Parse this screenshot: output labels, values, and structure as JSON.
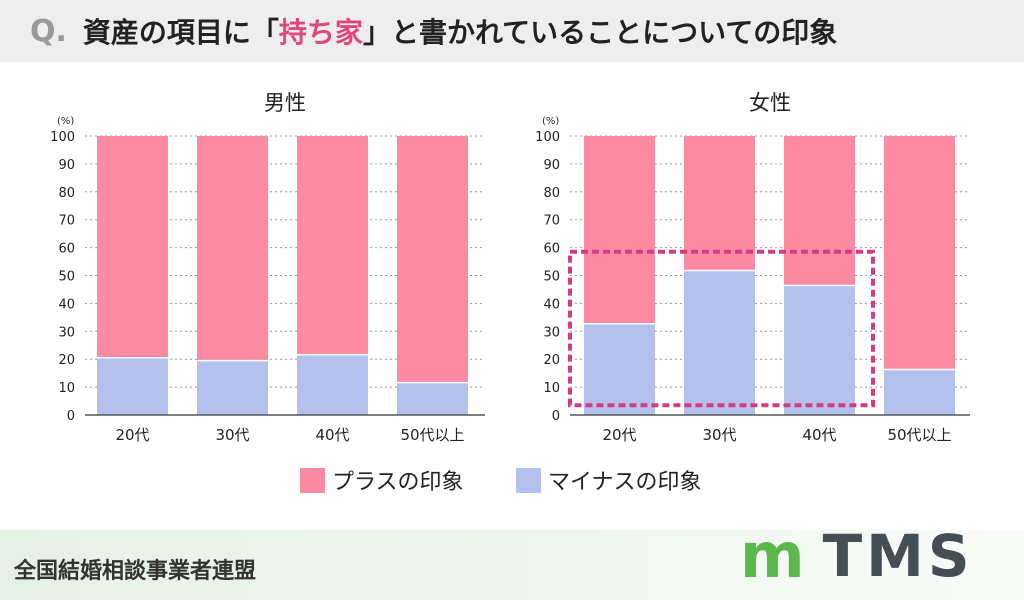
{
  "header": {
    "q": "Q.",
    "title_pre": "資産の項目に「",
    "title_hl": "持ち家",
    "title_post": "」と書かれていることについての印象"
  },
  "colors": {
    "plus": "#fb8aa2",
    "minus": "#b4c1ec",
    "highlight": "#d63a82"
  },
  "chart_data": [
    {
      "type": "bar",
      "stacked": true,
      "title": "男性",
      "ylabel": "(%)",
      "ylim": [
        0,
        100
      ],
      "yticks": [
        0,
        10,
        20,
        30,
        40,
        50,
        60,
        70,
        80,
        90,
        100
      ],
      "categories": [
        "20代",
        "30代",
        "40代",
        "50代以上"
      ],
      "series": [
        {
          "name": "マイナスの印象",
          "values": [
            20.5,
            19.5,
            21.6,
            11.6
          ]
        },
        {
          "name": "プラスの印象",
          "values": [
            79.5,
            80.5,
            78.4,
            88.4
          ]
        }
      ],
      "grid": true
    },
    {
      "type": "bar",
      "stacked": true,
      "title": "女性",
      "ylabel": "(%)",
      "ylim": [
        0,
        100
      ],
      "yticks": [
        0,
        10,
        20,
        30,
        40,
        50,
        60,
        70,
        80,
        90,
        100
      ],
      "categories": [
        "20代",
        "30代",
        "40代",
        "50代以上"
      ],
      "series": [
        {
          "name": "マイナスの印象",
          "values": [
            32.7,
            51.8,
            46.4,
            16.3
          ]
        },
        {
          "name": "プラスの印象",
          "values": [
            67.3,
            48.2,
            53.6,
            83.7
          ]
        }
      ],
      "grid": true,
      "annotation": "highlighted 20代–40代"
    }
  ],
  "legend": [
    "プラスの印象",
    "マイナスの印象"
  ],
  "footer": {
    "org": "全国結婚相談事業者連盟",
    "logo": "TMS"
  }
}
